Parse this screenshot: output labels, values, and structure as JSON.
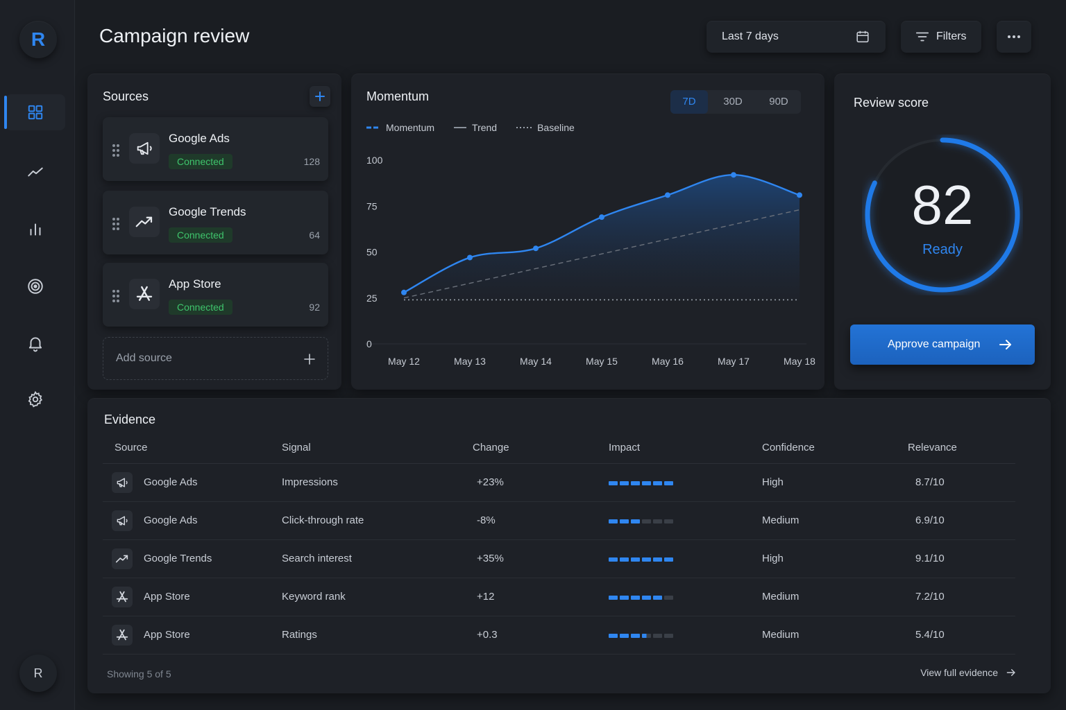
{
  "sidebar": {
    "logo": "R",
    "avatar": "R",
    "items": [
      {
        "icon": "grid-icon",
        "active": true
      },
      {
        "icon": "trend-line-icon"
      },
      {
        "icon": "bar-chart-icon"
      },
      {
        "icon": "target-icon"
      },
      {
        "icon": "bell-icon"
      },
      {
        "icon": "gear-icon"
      }
    ]
  },
  "header": {
    "title": "Campaign review",
    "date_range": "Last 7 days",
    "filters_label": "Filters"
  },
  "sources": {
    "title": "Sources",
    "items": [
      {
        "name": "Google Ads",
        "status": "Connected",
        "count": "128",
        "icon": "megaphone-icon"
      },
      {
        "name": "Google Trends",
        "status": "Connected",
        "count": "64",
        "icon": "trend-icon"
      },
      {
        "name": "App Store",
        "status": "Connected",
        "count": "92",
        "icon": "app-store-icon"
      }
    ],
    "add_label": "Add source"
  },
  "momentum": {
    "title": "Momentum",
    "ranges": [
      "7D",
      "30D",
      "90D"
    ],
    "selected_range": "7D",
    "legend": {
      "momentum": "Momentum",
      "trend": "Trend",
      "baseline": "Baseline"
    },
    "colors": {
      "line": "#2f86f0",
      "trend": "#6b717b",
      "baseline": "#9aa1ab"
    }
  },
  "chart_data": {
    "type": "area",
    "categories": [
      "May 12",
      "May 13",
      "May 14",
      "May 15",
      "May 16",
      "May 17",
      "May 18"
    ],
    "y_ticks": [
      "0",
      "25",
      "50",
      "75",
      "100"
    ],
    "ylim": [
      0,
      100
    ],
    "grid": false,
    "legend_position": "top-left",
    "series": [
      {
        "name": "Momentum",
        "values": [
          28,
          47,
          52,
          69,
          81,
          92,
          81
        ]
      },
      {
        "name": "Trend",
        "values": [
          25,
          33,
          41,
          49,
          57,
          65,
          73
        ]
      },
      {
        "name": "Baseline",
        "values": [
          24,
          24,
          24,
          24,
          24,
          24,
          24
        ]
      }
    ]
  },
  "score": {
    "title": "Review score",
    "value": "82",
    "percent": 82,
    "status": "Ready",
    "approve_label": "Approve campaign"
  },
  "evidence": {
    "title": "Evidence",
    "columns": [
      "Source",
      "Signal",
      "Change",
      "Impact",
      "Confidence",
      "Relevance"
    ],
    "rows": [
      {
        "source": "Google Ads",
        "icon": "megaphone-icon",
        "signal": "Impressions",
        "change": "+23%",
        "positive": true,
        "impact": 6,
        "confidence": "High",
        "relevance": "8.7/10"
      },
      {
        "source": "Google Ads",
        "icon": "megaphone-icon",
        "signal": "Click-through rate",
        "change": "-8%",
        "positive": false,
        "impact": 3,
        "confidence": "Medium",
        "relevance": "6.9/10"
      },
      {
        "source": "Google Trends",
        "icon": "trend-icon",
        "signal": "Search interest",
        "change": "+35%",
        "positive": true,
        "impact": 6,
        "confidence": "High",
        "relevance": "9.1/10"
      },
      {
        "source": "App Store",
        "icon": "app-store-icon",
        "signal": "Keyword rank",
        "change": "+12",
        "positive": true,
        "impact": 5,
        "confidence": "Medium",
        "relevance": "7.2/10"
      },
      {
        "source": "App Store",
        "icon": "app-store-icon",
        "signal": "Ratings",
        "change": "+0.3",
        "positive": true,
        "impact": 3.5,
        "confidence": "Medium",
        "relevance": "5.4/10"
      }
    ],
    "footer": "Showing 5 of 5",
    "view_all": "View full evidence"
  }
}
